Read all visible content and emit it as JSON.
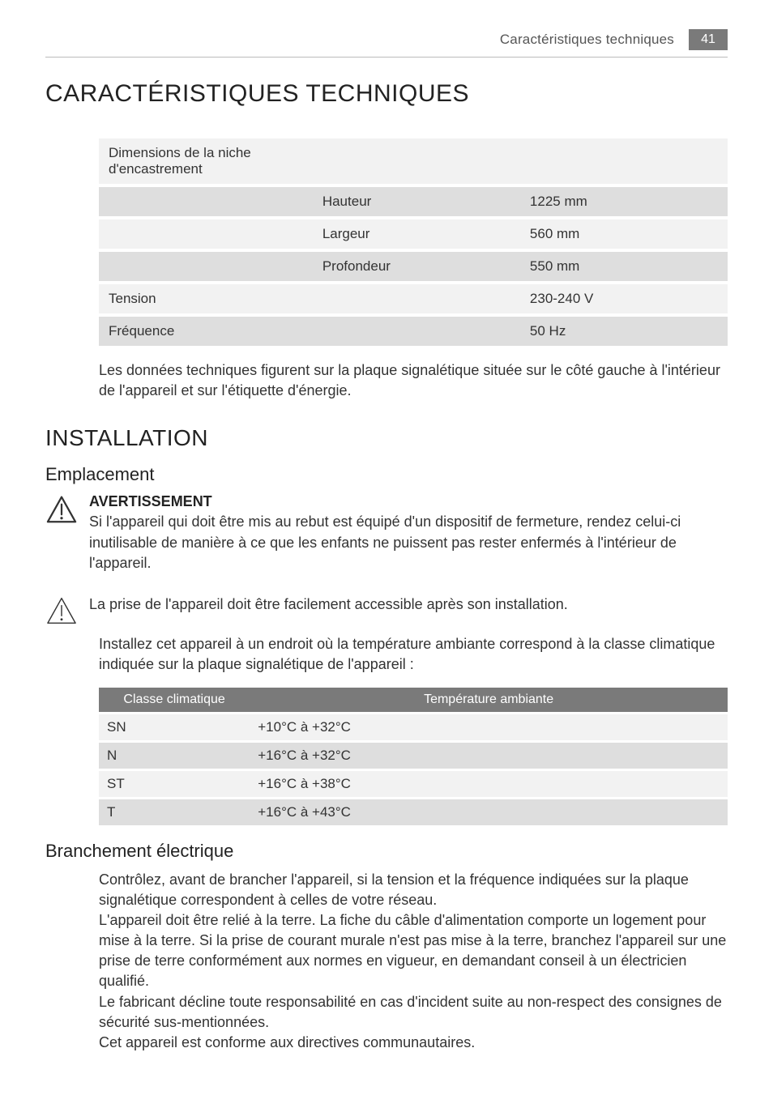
{
  "header": {
    "running_title": "Caractéristiques techniques",
    "page_number": "41"
  },
  "colors": {
    "badge_bg": "#7a7a7a",
    "row_light": "#f2f2f2",
    "row_dark": "#dedede",
    "climate_header_bg": "#7a7a7a",
    "text": "#333333",
    "rule": "#bbbbbb"
  },
  "specs": {
    "title": "CARACTÉRISTIQUES TECHNIQUES",
    "columns": {
      "col1_width_pct": 34,
      "col2_width_pct": 33,
      "col3_width_pct": 33
    },
    "rows": [
      {
        "shade": "light",
        "c1": "Dimensions de la niche d'encastrement",
        "c2": "",
        "c3": ""
      },
      {
        "shade": "dark",
        "c1": "",
        "c2": "Hauteur",
        "c3": "1225 mm"
      },
      {
        "shade": "light",
        "c1": "",
        "c2": "Largeur",
        "c3": "560 mm"
      },
      {
        "shade": "dark",
        "c1": "",
        "c2": "Profondeur",
        "c3": "550 mm"
      },
      {
        "shade": "light",
        "c1": "Tension",
        "c2": "",
        "c3": "230-240 V"
      },
      {
        "shade": "dark",
        "c1": "Fréquence",
        "c2": "",
        "c3": "50 Hz"
      }
    ],
    "note": "Les données techniques figurent sur la plaque signalétique située sur le côté gauche à l'intérieur de l'appareil et sur l'étiquette d'énergie."
  },
  "installation": {
    "title": "INSTALLATION",
    "emplacement": {
      "title": "Emplacement",
      "warning": {
        "label": "AVERTISSEMENT",
        "text": "Si l'appareil qui doit être mis au rebut est équipé d'un dispositif de fermeture, rendez celui-ci inutilisable de manière à ce que les enfants ne puissent pas rester enfermés à l'intérieur de l'appareil.",
        "icon_stroke_width": 2.5
      },
      "caution": {
        "text": "La prise de l'appareil doit être facilement accessible après son installation.",
        "icon_stroke_width": 1.6
      },
      "climate_intro": "Installez cet appareil à un endroit où la température ambiante correspond à la classe climatique indiquée sur la plaque signalétique de l'appareil :",
      "climate_table": {
        "headers": {
          "class": "Classe climatique",
          "temp": "Température ambiante"
        },
        "rows": [
          {
            "shade": "light",
            "class": "SN",
            "temp": "+10°C à +32°C"
          },
          {
            "shade": "dark",
            "class": "N",
            "temp": "+16°C à +32°C"
          },
          {
            "shade": "light",
            "class": "ST",
            "temp": "+16°C à +38°C"
          },
          {
            "shade": "dark",
            "class": "T",
            "temp": "+16°C à +43°C"
          }
        ]
      }
    },
    "branchement": {
      "title": "Branchement électrique",
      "p1": "Contrôlez, avant de brancher l'appareil, si la tension et la fréquence indiquées sur la plaque signalétique correspondent à celles de votre réseau.",
      "p2": "L'appareil doit être relié à la terre. La fiche du câble d'alimentation comporte un logement pour mise à la terre. Si la prise de courant murale n'est pas mise à la terre, branchez l'appareil sur une prise de terre conformément aux normes en vigueur, en demandant conseil à un électricien qualifié.",
      "p3": "Le fabricant décline toute responsabilité en cas d'incident suite au non-respect des consignes de sécurité sus-mentionnées.",
      "p4": "Cet appareil est conforme aux directives communautaires."
    }
  }
}
